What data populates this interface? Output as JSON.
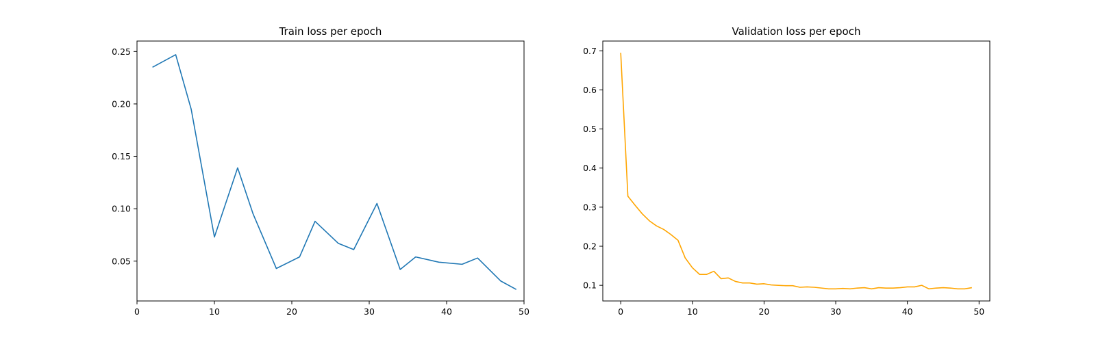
{
  "chart_data": [
    {
      "type": "line",
      "title": "Train loss per epoch",
      "xlabel": "",
      "ylabel": "",
      "xlim": [
        0,
        50
      ],
      "ylim": [
        0.012,
        0.26
      ],
      "xticks": [
        0,
        10,
        20,
        30,
        40,
        50
      ],
      "yticks": [
        0.05,
        0.1,
        0.15,
        0.2,
        0.25
      ],
      "ytick_labels": [
        "0.05",
        "0.10",
        "0.15",
        "0.20",
        "0.25"
      ],
      "grid": false,
      "series": [
        {
          "color": "#1f77b4",
          "x": [
            2,
            5,
            7,
            10,
            13,
            15,
            18,
            21,
            23,
            26,
            28,
            31,
            34,
            36,
            39,
            42,
            44,
            47,
            49
          ],
          "y": [
            0.235,
            0.247,
            0.195,
            0.073,
            0.139,
            0.095,
            0.043,
            0.054,
            0.088,
            0.067,
            0.061,
            0.105,
            0.042,
            0.054,
            0.049,
            0.047,
            0.053,
            0.031,
            0.023
          ]
        }
      ]
    },
    {
      "type": "line",
      "title": "Validation loss per epoch",
      "xlabel": "",
      "ylabel": "",
      "xlim": [
        -2.5,
        51.5
      ],
      "ylim": [
        0.06,
        0.725
      ],
      "xticks": [
        0,
        10,
        20,
        30,
        40,
        50
      ],
      "yticks": [
        0.1,
        0.2,
        0.3,
        0.4,
        0.5,
        0.6,
        0.7
      ],
      "ytick_labels": [
        "0.1",
        "0.2",
        "0.3",
        "0.4",
        "0.5",
        "0.6",
        "0.7"
      ],
      "grid": false,
      "series": [
        {
          "color": "#ffa500",
          "x": [
            0,
            1,
            2,
            3,
            4,
            5,
            6,
            7,
            8,
            9,
            10,
            11,
            12,
            13,
            14,
            15,
            16,
            17,
            18,
            19,
            20,
            21,
            22,
            23,
            24,
            25,
            26,
            27,
            28,
            29,
            30,
            31,
            32,
            33,
            34,
            35,
            36,
            37,
            38,
            39,
            40,
            41,
            42,
            43,
            44,
            45,
            46,
            47,
            48,
            49
          ],
          "y": [
            0.695,
            0.328,
            0.305,
            0.283,
            0.265,
            0.252,
            0.243,
            0.23,
            0.215,
            0.17,
            0.145,
            0.128,
            0.128,
            0.136,
            0.117,
            0.119,
            0.11,
            0.106,
            0.106,
            0.103,
            0.104,
            0.101,
            0.1,
            0.099,
            0.099,
            0.095,
            0.096,
            0.095,
            0.093,
            0.091,
            0.091,
            0.092,
            0.091,
            0.093,
            0.094,
            0.091,
            0.094,
            0.093,
            0.093,
            0.094,
            0.096,
            0.096,
            0.1,
            0.091,
            0.093,
            0.094,
            0.093,
            0.091,
            0.091,
            0.094
          ]
        }
      ]
    }
  ]
}
